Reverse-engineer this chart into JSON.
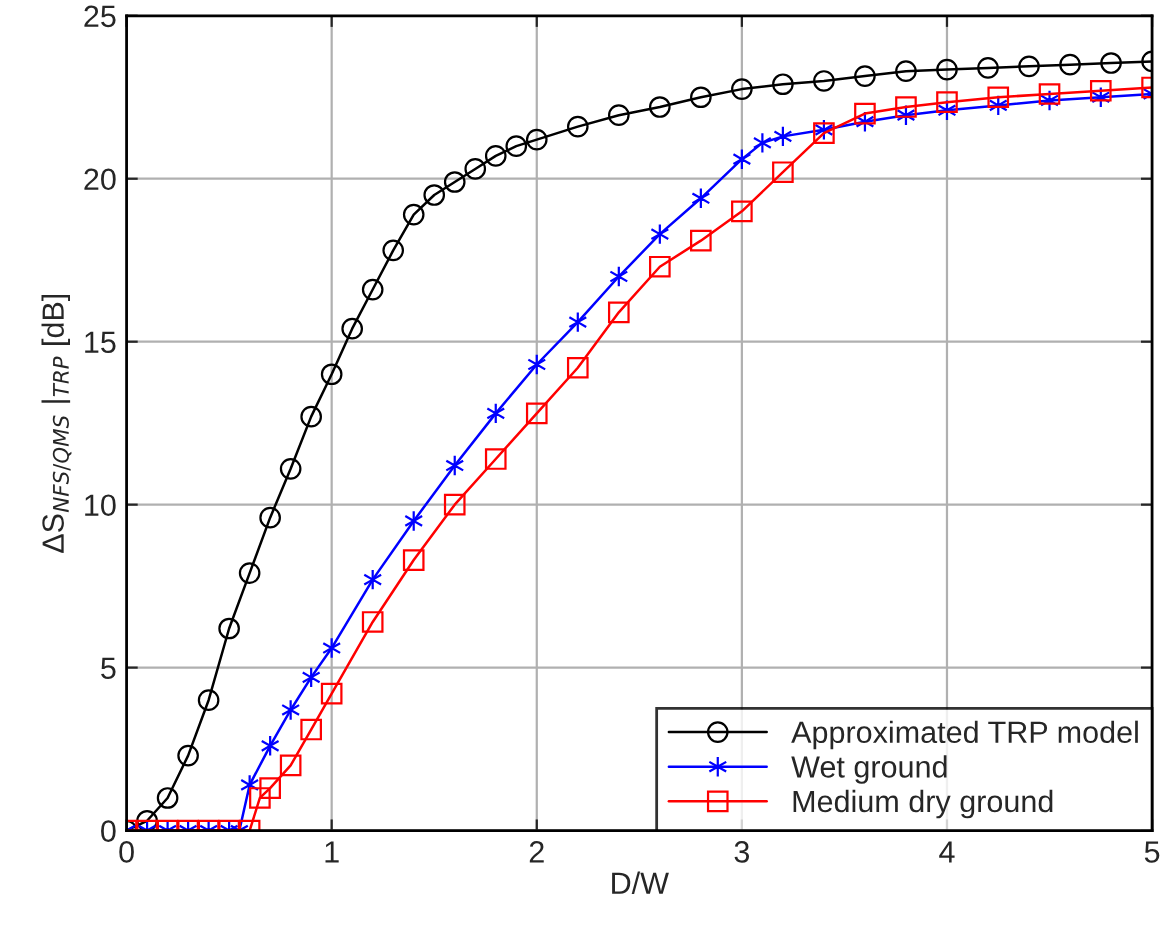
{
  "chart_data": {
    "type": "line",
    "xlabel": "D/W",
    "ylabel": "ΔS$_{NFS/QMS}$ |$_{TRP}$ [dB]",
    "xlim": [
      0,
      5
    ],
    "ylim": [
      0,
      25
    ],
    "xticks": [
      0,
      1,
      2,
      3,
      4,
      5
    ],
    "yticks": [
      0,
      5,
      10,
      15,
      20,
      25
    ],
    "grid": true,
    "legend": "bottom right",
    "line_style": "solid",
    "series": [
      {
        "name": "Approximated TRP model",
        "color": "#000000",
        "marker": "circle",
        "x": [
          0,
          0.1,
          0.2,
          0.3,
          0.4,
          0.5,
          0.6,
          0.7,
          0.8,
          0.9,
          1.0,
          1.1,
          1.2,
          1.3,
          1.4,
          1.5,
          1.6,
          1.7,
          1.8,
          1.9,
          2.0,
          2.2,
          2.4,
          2.6,
          2.8,
          3.0,
          3.2,
          3.4,
          3.6,
          3.8,
          4.0,
          4.2,
          4.4,
          4.6,
          4.8,
          5.0
        ],
        "values": [
          0,
          0.3,
          1.0,
          2.3,
          4.0,
          6.2,
          7.9,
          9.6,
          11.1,
          12.7,
          14.0,
          15.4,
          16.6,
          17.8,
          18.9,
          19.5,
          19.9,
          20.3,
          20.7,
          21.0,
          21.2,
          21.6,
          21.95,
          22.2,
          22.5,
          22.75,
          22.9,
          23.0,
          23.15,
          23.3,
          23.35,
          23.4,
          23.45,
          23.5,
          23.55,
          23.6
        ]
      },
      {
        "name": "Wet ground",
        "color": "#0000ff",
        "marker": "cross",
        "x": [
          0,
          0.1,
          0.2,
          0.3,
          0.4,
          0.5,
          0.55,
          0.6,
          0.7,
          0.8,
          0.9,
          1.0,
          1.2,
          1.4,
          1.6,
          1.8,
          2.0,
          2.2,
          2.4,
          2.6,
          2.8,
          3.0,
          3.1,
          3.2,
          3.4,
          3.6,
          3.8,
          4.0,
          4.25,
          4.5,
          4.75,
          5.0
        ],
        "values": [
          0,
          0,
          0,
          0,
          0,
          0,
          0,
          1.4,
          2.6,
          3.7,
          4.7,
          5.6,
          7.7,
          9.5,
          11.2,
          12.8,
          14.3,
          15.6,
          17.0,
          18.3,
          19.4,
          20.6,
          21.1,
          21.3,
          21.5,
          21.75,
          21.95,
          22.1,
          22.25,
          22.4,
          22.5,
          22.6
        ]
      },
      {
        "name": "Medium dry ground",
        "color": "#ff0000",
        "marker": "square",
        "x": [
          0,
          0.1,
          0.2,
          0.3,
          0.4,
          0.5,
          0.6,
          0.65,
          0.7,
          0.8,
          0.9,
          1.0,
          1.2,
          1.4,
          1.6,
          1.8,
          2.0,
          2.2,
          2.4,
          2.6,
          2.8,
          3.0,
          3.2,
          3.4,
          3.6,
          3.8,
          4.0,
          4.25,
          4.5,
          4.75,
          5.0
        ],
        "values": [
          0,
          0,
          0,
          0,
          0,
          0,
          0,
          1.0,
          1.3,
          2.0,
          3.1,
          4.2,
          6.4,
          8.3,
          10.0,
          11.4,
          12.8,
          14.2,
          15.9,
          17.3,
          18.1,
          19.0,
          20.2,
          21.4,
          22.0,
          22.2,
          22.35,
          22.5,
          22.6,
          22.7,
          22.8
        ]
      }
    ]
  }
}
